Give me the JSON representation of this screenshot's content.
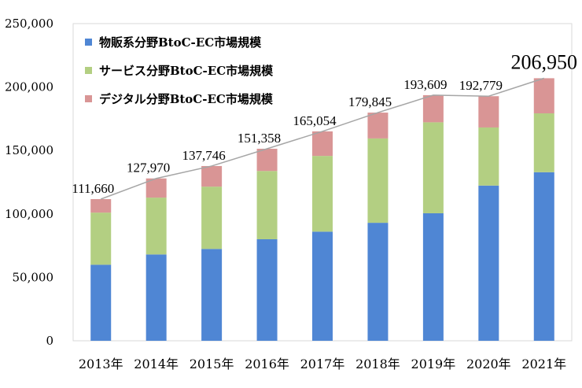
{
  "chart_data": {
    "type": "bar",
    "stacked": true,
    "categories": [
      "2013年",
      "2014年",
      "2015年",
      "2016年",
      "2017年",
      "2018年",
      "2019年",
      "2020年",
      "2021年"
    ],
    "series": [
      {
        "name": "物販系分野BtoC-EC市場規模",
        "color": "#4f86d4",
        "values": [
          59931,
          68043,
          72398,
          80043,
          86008,
          92992,
          100515,
          122333,
          132865
        ]
      },
      {
        "name": "サービス分野BtoC-EC市場規模",
        "color": "#b3cf82",
        "values": [
          41100,
          44800,
          49100,
          53800,
          59700,
          66500,
          71700,
          45800,
          46400
        ]
      },
      {
        "name": "デジタル分野BtoC-EC市場規模",
        "color": "#d99595",
        "values": [
          10629,
          15127,
          16248,
          17515,
          19346,
          20353,
          21394,
          24646,
          27685
        ]
      }
    ],
    "totals": [
      "111,660",
      "127,970",
      "137,746",
      "151,358",
      "165,054",
      "179,845",
      "193,609",
      "192,779",
      "206,950"
    ],
    "total_values": [
      111660,
      127970,
      137746,
      151358,
      165054,
      179845,
      193609,
      192779,
      206950
    ],
    "ylim": [
      0,
      250000
    ],
    "yticks": [
      "0",
      "50,000",
      "100,000",
      "150,000",
      "200,000",
      "250,000"
    ],
    "ytick_values": [
      0,
      50000,
      100000,
      150000,
      200000,
      250000
    ],
    "legend_position": "top-left",
    "grid": false,
    "trend_line_color": "#a6a6a6"
  }
}
